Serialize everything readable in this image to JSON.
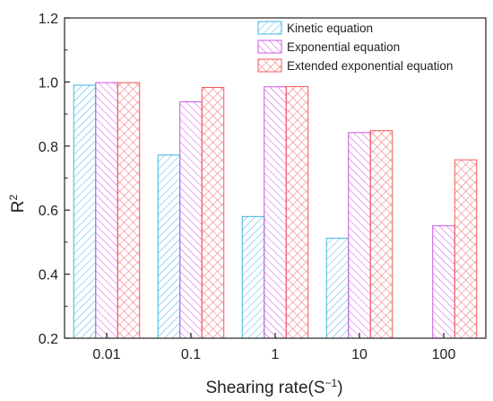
{
  "chart_data": {
    "type": "bar",
    "xlabel": "Shearing rate(S",
    "xlabel_sup": "−1",
    "xlabel_close": ")",
    "ylabel": "R",
    "ylabel_sup": "2",
    "ylim": [
      0.2,
      1.2
    ],
    "yticks": [
      "0.2",
      "0.4",
      "0.6",
      "0.8",
      "1.0",
      "1.2"
    ],
    "categories": [
      "0.01",
      "0.1",
      "1",
      "10",
      "100"
    ],
    "grid": false,
    "legend_position": "top-right",
    "series": [
      {
        "name": "Kinetic equation",
        "values": [
          0.99,
          0.772,
          0.58,
          0.512,
          null
        ],
        "color": "#3fb3e3",
        "pattern": "diag-right"
      },
      {
        "name": "Exponential equation",
        "values": [
          0.998,
          0.938,
          0.985,
          0.842,
          0.551
        ],
        "color": "#cc55e0",
        "pattern": "diag-left"
      },
      {
        "name": "Extended exponential equation",
        "values": [
          0.998,
          0.983,
          0.986,
          0.848,
          0.757
        ],
        "color": "#ef5a5a",
        "pattern": "cross"
      }
    ]
  }
}
